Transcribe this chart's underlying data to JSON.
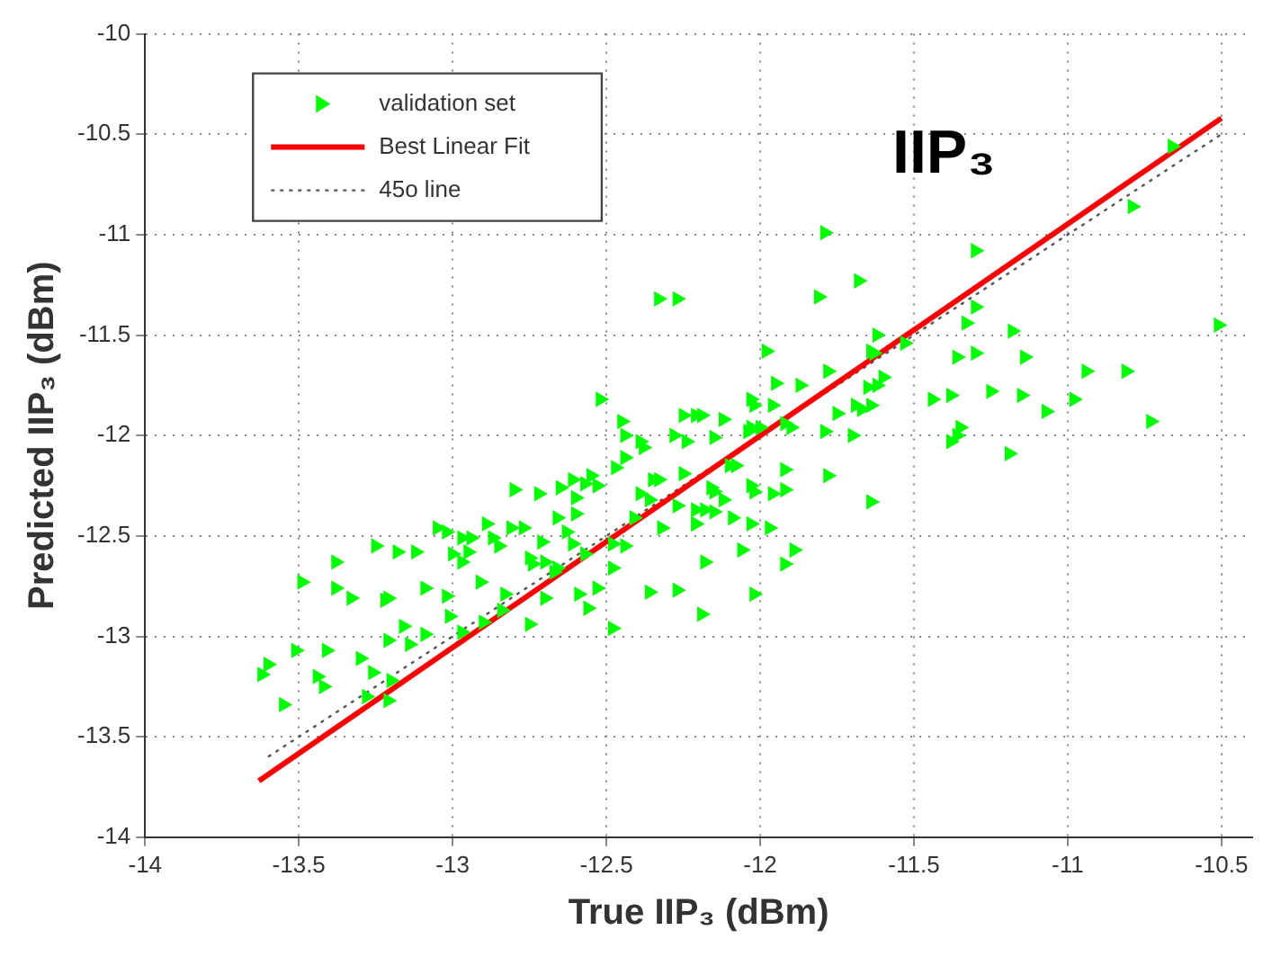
{
  "chart_data": {
    "type": "scatter",
    "xlabel": "True IIP₃ (dBm)",
    "ylabel": "Predicted IIP₃ (dBm)",
    "annotations": [
      "IIP₃"
    ],
    "xlim": [
      -14,
      -10.4
    ],
    "xticks": [
      -14,
      -13.5,
      -13,
      -12.5,
      -12,
      -11.5,
      -11,
      -10.5
    ],
    "ylim": [
      -14,
      -10
    ],
    "yticks": [
      -14,
      -13.5,
      -13,
      -12.5,
      -12,
      -11.5,
      -11,
      -10.5,
      -10
    ],
    "grid": true,
    "legend": "top left",
    "series": [
      {
        "name": "validation set",
        "color": "#00ff00",
        "marker": "triangle",
        "x": [
          -12.33,
          -12.27,
          -12.52,
          -12.45,
          -12.25,
          -12.21,
          -12.44,
          -12.39,
          -12.38,
          -12.28,
          -12.24,
          -12.44,
          -12.47,
          -12.55,
          -12.53,
          -12.57,
          -12.35,
          -12.33,
          -12.25,
          -12.8,
          -12.72,
          -12.65,
          -12.61,
          -12.6,
          -12.39,
          -12.36,
          -12.27,
          -12.21,
          -12.41,
          -12.66,
          -12.6,
          -12.89,
          -12.81,
          -12.77,
          -13.05,
          -13.02,
          -12.32,
          -12.21,
          -12.97,
          -12.94,
          -12.87,
          -12.85,
          -12.71,
          -12.63,
          -12.61,
          -12.48,
          -12.44,
          -13.25,
          -13.18,
          -13.12,
          -11.79,
          -11.3,
          -10.79,
          -10.66,
          -11.68,
          -11.81,
          -11.3,
          -11.33,
          -11.18,
          -11.62,
          -11.64,
          -11.63,
          -11.53,
          -11.98,
          -11.36,
          -11.3,
          -11.14,
          -10.94,
          -10.81,
          -10.51,
          -11.78,
          -11.95,
          -11.87,
          -11.6,
          -11.62,
          -11.65,
          -12.03,
          -12.02,
          -11.96,
          -11.69,
          -11.67,
          -11.64,
          -11.75,
          -11.44,
          -11.38,
          -11.25,
          -11.15,
          -10.98,
          -11.07,
          -10.73,
          -12.19,
          -12.12,
          -12.03,
          -12.0,
          -12.04,
          -11.92,
          -11.9,
          -11.79,
          -11.7,
          -11.35,
          -11.36,
          -11.38,
          -12.15,
          -11.19,
          -12.1,
          -12.08,
          -11.92,
          -11.78,
          -12.16,
          -12.15,
          -12.03,
          -12.02,
          -11.96,
          -11.92,
          -11.64,
          -12.18,
          -12.15,
          -12.12,
          -12.09,
          -12.21,
          -12.03,
          -11.97,
          -12.06,
          -11.89,
          -13.38,
          -13.0,
          -12.95,
          -12.97,
          -12.75,
          -12.74,
          -12.7,
          -12.66,
          -12.67,
          -12.57,
          -12.48,
          -12.91,
          -12.83,
          -12.7,
          -12.59,
          -12.53,
          -12.36,
          -12.27,
          -12.19,
          -12.18,
          -12.56,
          -12.48,
          -12.75,
          -12.84,
          -12.9,
          -12.97,
          -13.01,
          -13.09,
          -13.02,
          -13.21,
          -13.22,
          -13.38,
          -13.33,
          -13.49,
          -13.16,
          -13.09,
          -13.21,
          -13.14,
          -13.3,
          -13.26,
          -13.2,
          -13.28,
          -13.21,
          -13.51,
          -13.41,
          -13.6,
          -13.62,
          -13.44,
          -13.42,
          -13.55,
          -11.92,
          -12.02
        ],
        "values": [
          -11.32,
          -11.32,
          -11.82,
          -11.93,
          -11.9,
          -11.9,
          -12.0,
          -12.03,
          -12.06,
          -12.0,
          -12.03,
          -12.11,
          -12.16,
          -12.2,
          -12.25,
          -12.24,
          -12.22,
          -12.22,
          -12.19,
          -12.27,
          -12.29,
          -12.26,
          -12.22,
          -12.31,
          -12.29,
          -12.32,
          -12.35,
          -12.37,
          -12.41,
          -12.41,
          -12.39,
          -12.44,
          -12.46,
          -12.46,
          -12.46,
          -12.48,
          -12.46,
          -12.44,
          -12.51,
          -12.51,
          -12.51,
          -12.55,
          -12.53,
          -12.48,
          -12.54,
          -12.54,
          -12.55,
          -12.55,
          -12.58,
          -12.58,
          -10.99,
          -11.08,
          -10.86,
          -10.56,
          -11.23,
          -11.31,
          -11.36,
          -11.44,
          -11.48,
          -11.5,
          -11.58,
          -11.59,
          -11.54,
          -11.58,
          -11.61,
          -11.59,
          -11.61,
          -11.68,
          -11.68,
          -11.45,
          -11.68,
          -11.74,
          -11.75,
          -11.71,
          -11.75,
          -11.76,
          -11.82,
          -11.85,
          -11.85,
          -11.85,
          -11.87,
          -11.85,
          -11.89,
          -11.82,
          -11.8,
          -11.78,
          -11.8,
          -11.82,
          -11.88,
          -11.93,
          -11.9,
          -11.92,
          -11.96,
          -11.96,
          -11.98,
          -11.94,
          -11.96,
          -11.98,
          -12.0,
          -11.96,
          -12.0,
          -12.03,
          -12.01,
          -12.09,
          -12.15,
          -12.15,
          -12.17,
          -12.2,
          -12.26,
          -12.28,
          -12.25,
          -12.28,
          -12.29,
          -12.27,
          -12.33,
          -12.37,
          -12.38,
          -12.32,
          -12.41,
          -12.44,
          -12.44,
          -12.46,
          -12.57,
          -12.57,
          -12.63,
          -12.59,
          -12.58,
          -12.63,
          -12.61,
          -12.64,
          -12.63,
          -12.66,
          -12.68,
          -12.59,
          -12.66,
          -12.73,
          -12.79,
          -12.81,
          -12.79,
          -12.76,
          -12.78,
          -12.77,
          -12.89,
          -12.63,
          -12.86,
          -12.96,
          -12.94,
          -12.87,
          -12.93,
          -12.98,
          -12.9,
          -12.76,
          -12.8,
          -12.81,
          -12.82,
          -12.76,
          -12.81,
          -12.73,
          -12.95,
          -12.99,
          -13.02,
          -13.04,
          -13.11,
          -13.18,
          -13.22,
          -13.3,
          -13.32,
          -13.07,
          -13.07,
          -13.14,
          -13.19,
          -13.2,
          -13.25,
          -13.34,
          -12.64,
          -12.79
        ]
      },
      {
        "type": "line",
        "name": "Best Linear Fit",
        "color": "#ff0000",
        "line_style": "solid",
        "x": [
          -13.63,
          -10.5
        ],
        "values": [
          -13.72,
          -10.42
        ]
      },
      {
        "type": "line",
        "name": "45o line",
        "color": "#555555",
        "line_style": "dotted",
        "x": [
          -13.6,
          -10.5
        ],
        "values": [
          -13.6,
          -10.5
        ]
      }
    ]
  }
}
